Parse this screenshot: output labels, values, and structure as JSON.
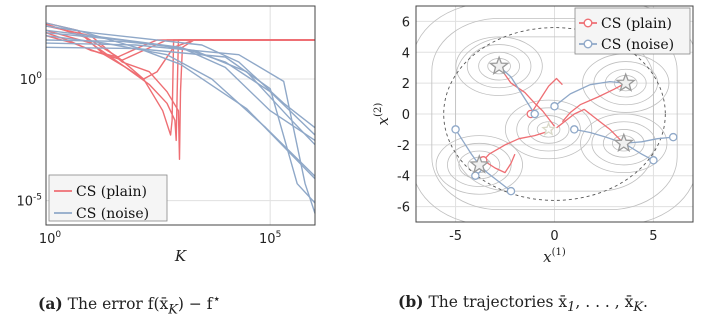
{
  "colors": {
    "plain": "#ee6e73",
    "noise": "#8fa8c8",
    "contour": "#bfbfbf",
    "grid": "#e0e0e0",
    "star": "#9a9a9a"
  },
  "chart_data": [
    {
      "type": "line",
      "subtitle": "(a) The error f(x̄_K) − f*",
      "caption_prefix": "(a)",
      "caption_rest": "The error f(x̄",
      "caption_sub": "K",
      "caption_tail": ") − f",
      "caption_sup": "⋆",
      "xlabel": "K",
      "x_scale": "log",
      "y_scale": "log",
      "xlim": [
        1,
        1000000
      ],
      "ylim": [
        1e-06,
        1000
      ],
      "xticks": [
        {
          "value": 1,
          "label": "10",
          "exp": "0"
        },
        {
          "value": 100000,
          "label": "10",
          "exp": "5"
        }
      ],
      "yticks": [
        {
          "value": 1,
          "label": "10",
          "exp": "0"
        },
        {
          "value": 1e-05,
          "label": "10",
          "exp": "-5"
        }
      ],
      "grid": true,
      "legend_placement": "bottom-left",
      "legend": [
        "CS (plain)",
        "CS (noise)"
      ],
      "series": [
        {
          "name": "CS (plain)",
          "color": "plain",
          "x": [
            1,
            5,
            20,
            60,
            150,
            300,
            700,
            2000,
            1000000
          ],
          "y": [
            200,
            100,
            10,
            3,
            1,
            2,
            20,
            40,
            40
          ]
        },
        {
          "name": "CS (plain)",
          "color": "plain",
          "x": [
            1,
            10,
            50,
            200,
            500,
            900,
            950,
            1000,
            1100,
            2000,
            1000000
          ],
          "y": [
            150,
            60,
            5,
            2,
            0.3,
            0.05,
            0.0005,
            0.3,
            20,
            40,
            40
          ]
        },
        {
          "name": "CS (plain)",
          "color": "plain",
          "x": [
            1,
            10,
            60,
            200,
            500,
            750,
            800,
            850,
            900,
            1000000
          ],
          "y": [
            100,
            30,
            3,
            0.6,
            0.1,
            0.02,
            0.003,
            0.5,
            40,
            40
          ]
        },
        {
          "name": "CS (plain)",
          "color": "plain",
          "x": [
            1,
            8,
            40,
            150,
            400,
            600,
            650,
            700,
            1000000
          ],
          "y": [
            180,
            50,
            8,
            1,
            0.05,
            0.005,
            0.02,
            40,
            40
          ]
        },
        {
          "name": "CS (plain)",
          "color": "plain",
          "x": [
            1,
            3,
            10,
            40,
            120,
            300,
            1000000
          ],
          "y": [
            80,
            40,
            15,
            8,
            20,
            40,
            40
          ]
        },
        {
          "name": "CS (plain)",
          "color": "plain",
          "x": [
            1,
            4,
            15,
            50,
            150,
            500,
            1000000
          ],
          "y": [
            60,
            30,
            12,
            6,
            15,
            40,
            40
          ]
        },
        {
          "name": "CS (noise)",
          "color": "noise",
          "x": [
            1,
            10,
            1000,
            10000,
            100000,
            1000000
          ],
          "y": [
            100,
            60,
            20,
            3,
            0.05,
            0.003
          ]
        },
        {
          "name": "CS (noise)",
          "color": "noise",
          "x": [
            1,
            10,
            3000,
            20000,
            200000,
            1000000
          ],
          "y": [
            150,
            80,
            25,
            5,
            0.1,
            0.01
          ]
        },
        {
          "name": "CS (noise)",
          "color": "noise",
          "x": [
            1,
            50,
            2000,
            30000,
            300000,
            1000000
          ],
          "y": [
            80,
            40,
            15,
            2,
            0.02,
            0.002
          ]
        },
        {
          "name": "CS (noise)",
          "color": "noise",
          "x": [
            1,
            100,
            10000,
            100000,
            400000,
            1000000
          ],
          "y": [
            20,
            18,
            8,
            0.4,
            5e-05,
            8e-06
          ]
        },
        {
          "name": "CS (noise)",
          "color": "noise",
          "x": [
            1,
            100,
            20000,
            200000,
            600000,
            1000000
          ],
          "y": [
            30,
            25,
            10,
            0.8,
            5e-05,
            3e-06
          ]
        },
        {
          "name": "CS (noise)",
          "color": "noise",
          "x": [
            1,
            20,
            500,
            5000,
            80000,
            1000000
          ],
          "y": [
            60,
            30,
            10,
            1,
            0.01,
            0.0001
          ]
        },
        {
          "name": "CS (noise)",
          "color": "noise",
          "x": [
            1,
            5,
            100,
            1000,
            30000,
            1000000
          ],
          "y": [
            200,
            100,
            20,
            4,
            0.06,
            8e-05
          ]
        },
        {
          "name": "CS (noise)",
          "color": "noise",
          "x": [
            1,
            50,
            1000,
            10000,
            100000,
            1000000
          ],
          "y": [
            40,
            35,
            20,
            5,
            0.3,
            0.005
          ]
        }
      ]
    },
    {
      "type": "line",
      "subtitle": "(b) The trajectories x̄_1, ..., x̄_K.",
      "caption_prefix": "(b)",
      "caption_rest": "The trajectories x̄",
      "caption_sub1": "1",
      "caption_mid": ", . . . , x̄",
      "caption_sub2": "K",
      "caption_tail": ".",
      "xlabel": "x",
      "xlabel_sup": "(1)",
      "ylabel": "x",
      "ylabel_sup": "(2)",
      "xlim": [
        -7,
        7
      ],
      "ylim": [
        -7,
        7
      ],
      "xticks": [
        {
          "value": -5,
          "label": "-5"
        },
        {
          "value": 0,
          "label": "0"
        },
        {
          "value": 5,
          "label": "5"
        }
      ],
      "yticks": [
        {
          "value": 6,
          "label": "6"
        },
        {
          "value": 4,
          "label": "4"
        },
        {
          "value": 2,
          "label": "2"
        },
        {
          "value": 0,
          "label": "0"
        },
        {
          "value": -2,
          "label": "-2"
        },
        {
          "value": -4,
          "label": "-4"
        },
        {
          "value": -6,
          "label": "-6"
        }
      ],
      "grid": true,
      "legend_placement": "top-right",
      "legend": [
        "CS (plain)",
        "CS (noise)"
      ],
      "minima": [
        [
          -2.8,
          3.1
        ],
        [
          3.6,
          2.0
        ],
        [
          -3.8,
          -3.3
        ],
        [
          3.5,
          -1.9
        ],
        [
          -0.3,
          -1.0
        ]
      ],
      "circle_radius": 5.6,
      "series": [
        {
          "name": "CS (plain)",
          "color": "plain",
          "x": [
            -2.8,
            -2.2,
            -1.5,
            -1.0,
            -0.6,
            -0.3,
            0.0
          ],
          "y": [
            3.1,
            2.0,
            1.4,
            0.7,
            0.2,
            -0.3,
            -0.8
          ]
        },
        {
          "name": "CS (plain)",
          "color": "plain",
          "x": [
            -3.8,
            -3.3,
            -2.5,
            -1.8,
            -1.0,
            -0.5,
            -0.1
          ],
          "y": [
            -3.3,
            -2.6,
            -2.0,
            -1.6,
            -1.4,
            -1.2,
            -1.0
          ]
        },
        {
          "name": "CS (plain)",
          "color": "plain",
          "x": [
            3.5,
            2.8,
            2.0,
            1.5,
            1.0,
            0.5,
            0.1
          ],
          "y": [
            -1.9,
            -1.0,
            -0.2,
            0.3,
            0.0,
            -0.5,
            -0.9
          ]
        },
        {
          "name": "CS (plain)",
          "color": "plain",
          "x": [
            3.6,
            3.0,
            2.2,
            1.3,
            0.8,
            0.4
          ],
          "y": [
            2.0,
            1.6,
            1.1,
            0.6,
            0.1,
            -0.5
          ]
        },
        {
          "name": "CS (plain)",
          "color": "plain",
          "x": [
            -3.6,
            -3.0,
            -2.5,
            -2.2,
            -2.0
          ],
          "y": [
            -3.0,
            -3.5,
            -3.8,
            -3.2,
            -2.6
          ]
        },
        {
          "name": "CS (plain)",
          "color": "plain",
          "x": [
            -1.2,
            -1.0,
            -0.6,
            -0.3,
            0.1,
            0.4
          ],
          "y": [
            0.0,
            0.4,
            1.2,
            1.8,
            2.3,
            1.9
          ]
        },
        {
          "name": "CS (noise)",
          "color": "noise",
          "x": [
            -5.0,
            -4.6,
            -4.2,
            -3.8
          ],
          "y": [
            -1.0,
            -1.8,
            -2.6,
            -3.3
          ]
        },
        {
          "name": "CS (noise)",
          "color": "noise",
          "x": [
            -2.2,
            -2.8,
            -3.4,
            -3.8
          ],
          "y": [
            -5.0,
            -4.4,
            -3.8,
            -3.3
          ]
        },
        {
          "name": "CS (noise)",
          "color": "noise",
          "x": [
            -1.0,
            -1.6,
            -2.2,
            -2.8
          ],
          "y": [
            0.0,
            1.2,
            2.4,
            3.1
          ]
        },
        {
          "name": "CS (noise)",
          "color": "noise",
          "x": [
            0.0,
            0.8,
            1.8,
            2.8,
            3.6
          ],
          "y": [
            0.5,
            1.3,
            1.9,
            2.1,
            2.0
          ]
        },
        {
          "name": "CS (noise)",
          "color": "noise",
          "x": [
            1.0,
            1.8,
            2.6,
            3.5
          ],
          "y": [
            -1.0,
            -1.2,
            -1.5,
            -1.9
          ]
        },
        {
          "name": "CS (noise)",
          "color": "noise",
          "x": [
            6.0,
            5.2,
            4.4,
            3.5
          ],
          "y": [
            -1.5,
            -1.6,
            -1.8,
            -1.9
          ]
        },
        {
          "name": "CS (noise)",
          "color": "noise",
          "x": [
            5.0,
            4.4,
            3.9,
            3.5
          ],
          "y": [
            -3.0,
            -2.6,
            -2.2,
            -1.9
          ]
        },
        {
          "name": "CS (noise)",
          "color": "noise",
          "x": [
            -4.0,
            -3.8,
            -3.6,
            -3.8
          ],
          "y": [
            -4.0,
            -3.8,
            -3.5,
            -3.3
          ]
        }
      ]
    }
  ]
}
